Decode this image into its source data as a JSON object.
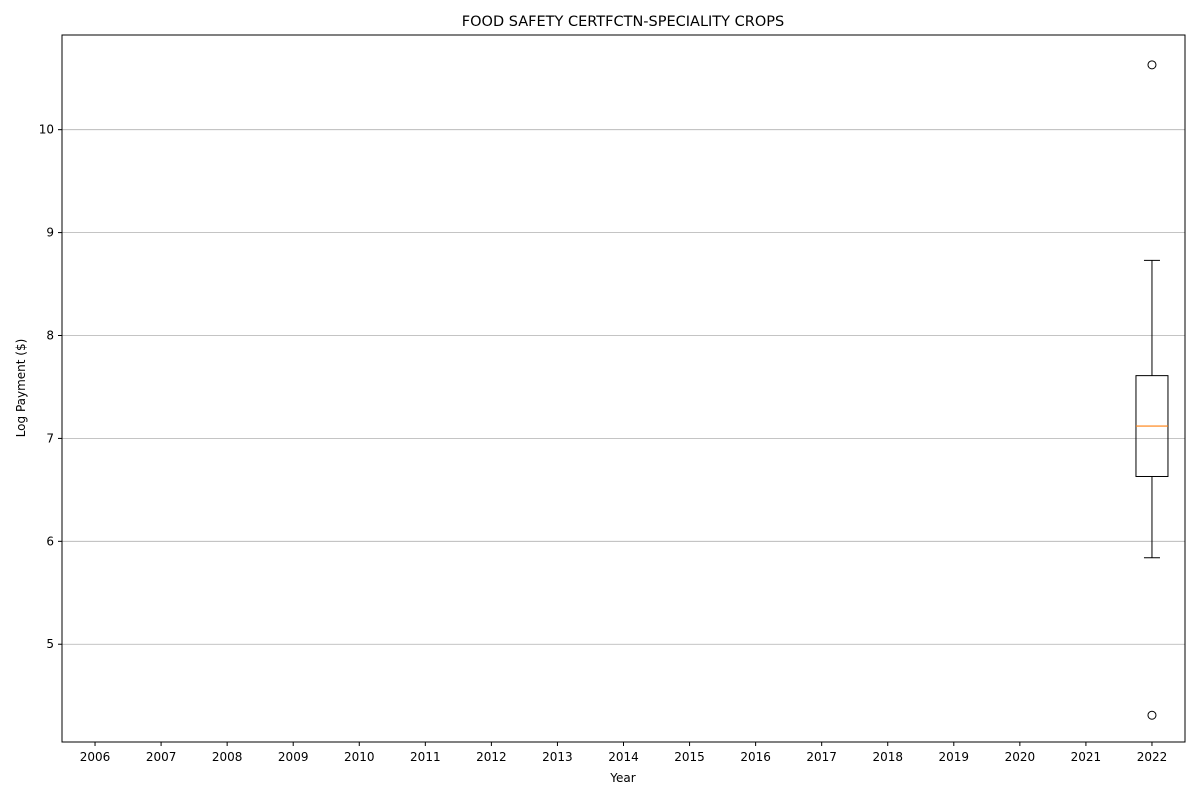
{
  "chart_data": {
    "type": "box",
    "title": "FOOD SAFETY CERTFCTN-SPECIALITY CROPS",
    "xlabel": "Year",
    "ylabel": "Log Payment ($)",
    "categories": [
      "2006",
      "2007",
      "2008",
      "2009",
      "2010",
      "2011",
      "2012",
      "2013",
      "2014",
      "2015",
      "2016",
      "2017",
      "2018",
      "2019",
      "2020",
      "2021",
      "2022"
    ],
    "yticks": [
      5,
      6,
      7,
      8,
      9,
      10
    ],
    "ylim": [
      4.05,
      10.92
    ],
    "grid": "y",
    "boxes": [
      {
        "category": "2022",
        "whisker_low": 5.84,
        "q1": 6.63,
        "median": 7.12,
        "q3": 7.61,
        "whisker_high": 8.73,
        "outliers": [
          10.63,
          4.31
        ]
      }
    ],
    "colors": {
      "box": "#000000",
      "median": "#ff7f0e",
      "grid": "#b0b0b0",
      "outlier": "#000000"
    }
  }
}
